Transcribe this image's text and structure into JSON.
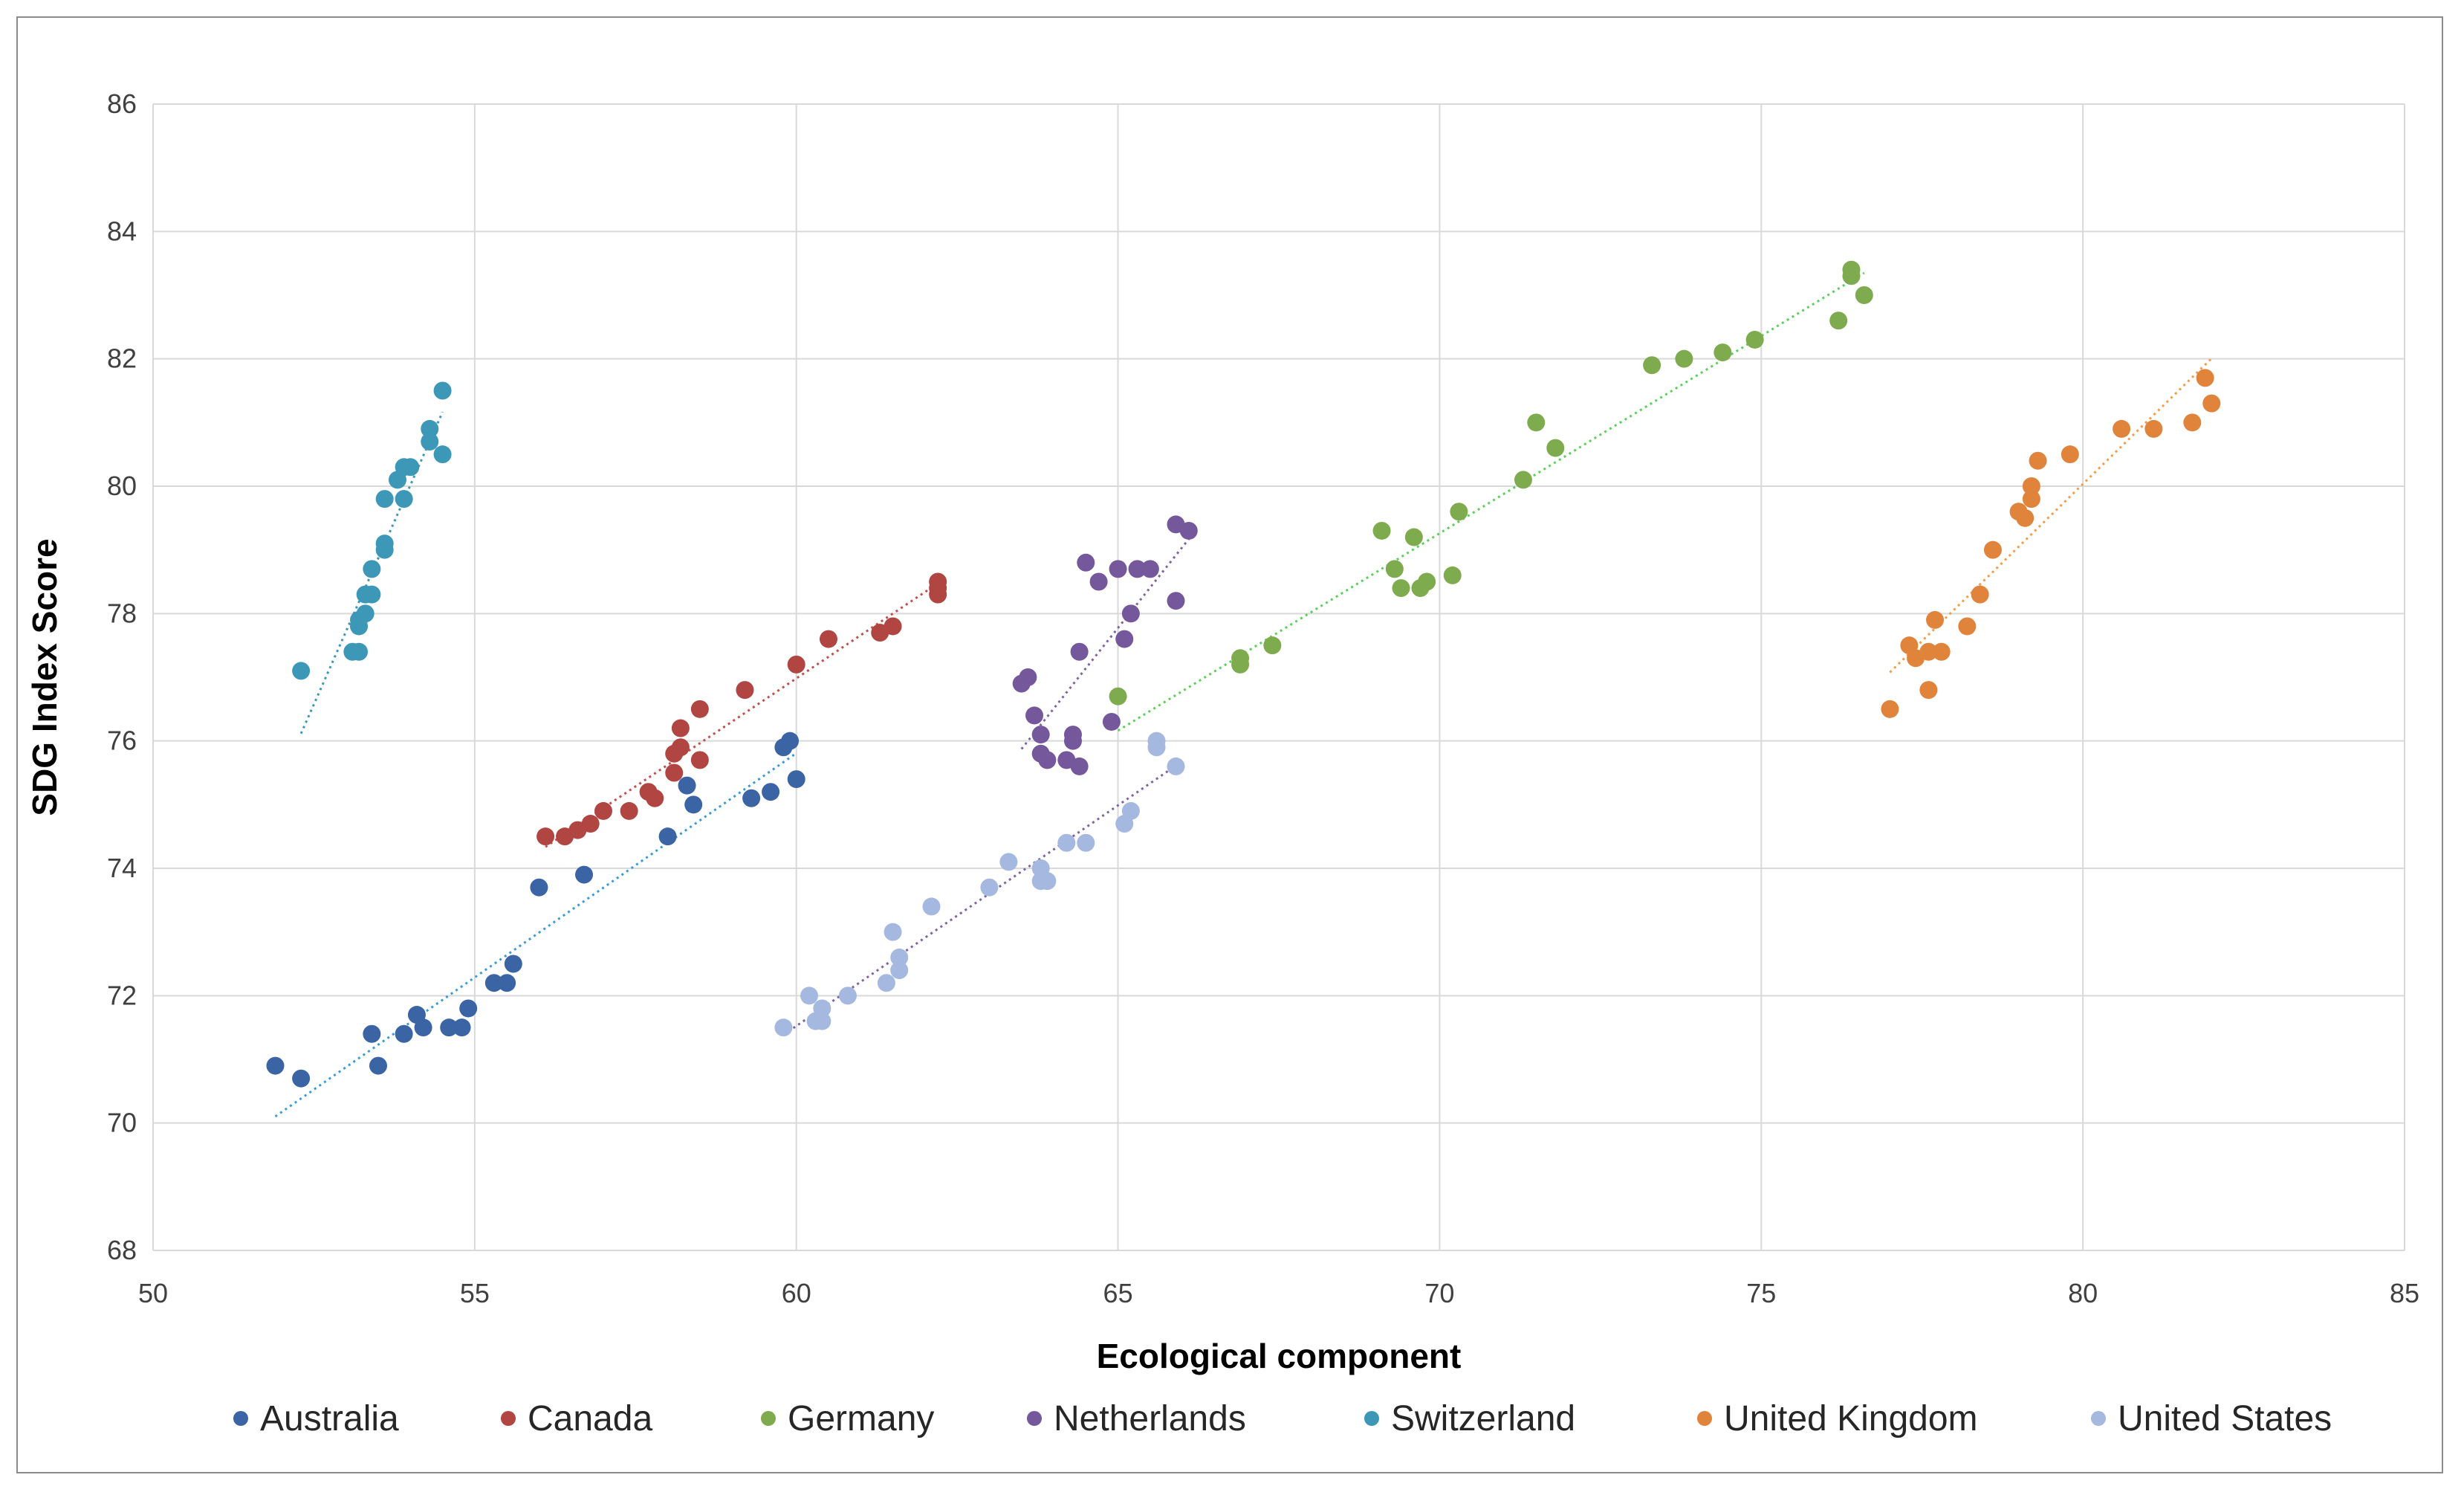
{
  "chart_data": {
    "type": "scatter",
    "title": "",
    "xlabel": "Ecological component",
    "ylabel": "SDG Index Score",
    "xlim": [
      50,
      85
    ],
    "ylim": [
      68,
      86
    ],
    "xticks": [
      50,
      55,
      60,
      65,
      70,
      75,
      80,
      85
    ],
    "yticks": [
      68,
      70,
      72,
      74,
      76,
      78,
      80,
      82,
      84,
      86
    ],
    "grid": true,
    "legend_position": "bottom",
    "trendlines": true,
    "series": [
      {
        "name": "Australia",
        "color": "#3B64A5",
        "trend_color": "#3C9BD6",
        "points": [
          [
            51.9,
            70.9
          ],
          [
            52.3,
            70.7
          ],
          [
            53.4,
            71.4
          ],
          [
            53.5,
            70.9
          ],
          [
            53.9,
            71.4
          ],
          [
            54.1,
            71.7
          ],
          [
            54.2,
            71.5
          ],
          [
            54.6,
            71.5
          ],
          [
            54.8,
            71.5
          ],
          [
            54.9,
            71.8
          ],
          [
            55.3,
            72.2
          ],
          [
            55.5,
            72.2
          ],
          [
            55.6,
            72.5
          ],
          [
            56.0,
            73.7
          ],
          [
            56.7,
            73.9
          ],
          [
            58.0,
            74.5
          ],
          [
            58.3,
            75.3
          ],
          [
            58.4,
            75.0
          ],
          [
            59.3,
            75.1
          ],
          [
            59.6,
            75.2
          ],
          [
            59.8,
            75.9
          ],
          [
            59.9,
            76.0
          ],
          [
            60.0,
            75.4
          ]
        ]
      },
      {
        "name": "Canada",
        "color": "#B04542",
        "trend_color": "#C0504D",
        "points": [
          [
            56.1,
            74.5
          ],
          [
            56.4,
            74.5
          ],
          [
            56.6,
            74.6
          ],
          [
            56.8,
            74.7
          ],
          [
            57.0,
            74.9
          ],
          [
            57.4,
            74.9
          ],
          [
            57.7,
            75.2
          ],
          [
            57.8,
            75.1
          ],
          [
            58.1,
            75.5
          ],
          [
            58.1,
            75.8
          ],
          [
            58.2,
            75.9
          ],
          [
            58.2,
            76.2
          ],
          [
            58.5,
            75.7
          ],
          [
            58.5,
            76.5
          ],
          [
            59.2,
            76.8
          ],
          [
            60.0,
            77.2
          ],
          [
            60.5,
            77.6
          ],
          [
            61.3,
            77.7
          ],
          [
            61.5,
            77.8
          ],
          [
            62.2,
            78.5
          ],
          [
            62.2,
            78.3
          ],
          [
            62.2,
            78.4
          ]
        ]
      },
      {
        "name": "Germany",
        "color": "#7FAB4F",
        "trend_color": "#5CCF5C",
        "points": [
          [
            65.0,
            76.7
          ],
          [
            66.9,
            77.2
          ],
          [
            66.9,
            77.3
          ],
          [
            67.4,
            77.5
          ],
          [
            69.1,
            79.3
          ],
          [
            69.3,
            78.7
          ],
          [
            69.4,
            78.4
          ],
          [
            69.6,
            79.2
          ],
          [
            69.7,
            78.4
          ],
          [
            69.8,
            78.5
          ],
          [
            70.2,
            78.6
          ],
          [
            70.3,
            79.6
          ],
          [
            71.3,
            80.1
          ],
          [
            71.5,
            81.0
          ],
          [
            71.8,
            80.6
          ],
          [
            73.3,
            81.9
          ],
          [
            73.8,
            82.0
          ],
          [
            74.4,
            82.1
          ],
          [
            74.9,
            82.3
          ],
          [
            76.2,
            82.6
          ],
          [
            76.4,
            83.4
          ],
          [
            76.4,
            83.3
          ],
          [
            76.6,
            83.0
          ]
        ]
      },
      {
        "name": "Netherlands",
        "color": "#75579B",
        "trend_color": "#8064A2",
        "points": [
          [
            63.5,
            76.9
          ],
          [
            63.6,
            77.0
          ],
          [
            63.7,
            76.4
          ],
          [
            63.8,
            76.1
          ],
          [
            63.8,
            75.8
          ],
          [
            63.9,
            75.7
          ],
          [
            64.2,
            75.7
          ],
          [
            64.3,
            76.0
          ],
          [
            64.3,
            76.1
          ],
          [
            64.4,
            75.6
          ],
          [
            64.4,
            77.4
          ],
          [
            64.5,
            78.8
          ],
          [
            64.7,
            78.5
          ],
          [
            64.9,
            76.3
          ],
          [
            65.0,
            78.7
          ],
          [
            65.1,
            77.6
          ],
          [
            65.2,
            78.0
          ],
          [
            65.3,
            78.7
          ],
          [
            65.5,
            78.7
          ],
          [
            65.9,
            79.4
          ],
          [
            65.9,
            78.2
          ],
          [
            66.1,
            79.3
          ]
        ]
      },
      {
        "name": "Switzerland",
        "color": "#3C98B6",
        "trend_color": "#3C98B6",
        "points": [
          [
            52.3,
            77.1
          ],
          [
            53.1,
            77.4
          ],
          [
            53.2,
            77.8
          ],
          [
            53.2,
            77.9
          ],
          [
            53.2,
            77.4
          ],
          [
            53.3,
            78.3
          ],
          [
            53.3,
            78.0
          ],
          [
            53.4,
            78.7
          ],
          [
            53.4,
            78.3
          ],
          [
            53.6,
            79.8
          ],
          [
            53.6,
            79.1
          ],
          [
            53.6,
            79.0
          ],
          [
            53.8,
            80.1
          ],
          [
            53.9,
            80.3
          ],
          [
            53.9,
            79.8
          ],
          [
            54.0,
            80.3
          ],
          [
            54.3,
            80.7
          ],
          [
            54.3,
            80.9
          ],
          [
            54.5,
            80.5
          ],
          [
            54.5,
            81.5
          ]
        ]
      },
      {
        "name": "United Kingdom",
        "color": "#E1843B",
        "trend_color": "#F39C4B",
        "points": [
          [
            77.0,
            76.5
          ],
          [
            77.3,
            77.5
          ],
          [
            77.4,
            77.3
          ],
          [
            77.6,
            76.8
          ],
          [
            77.6,
            77.4
          ],
          [
            77.7,
            77.9
          ],
          [
            77.8,
            77.4
          ],
          [
            78.2,
            77.8
          ],
          [
            78.4,
            78.3
          ],
          [
            78.6,
            79.0
          ],
          [
            79.0,
            79.6
          ],
          [
            79.1,
            79.5
          ],
          [
            79.2,
            79.8
          ],
          [
            79.2,
            80.0
          ],
          [
            79.3,
            80.4
          ],
          [
            79.8,
            80.5
          ],
          [
            80.6,
            80.9
          ],
          [
            81.1,
            80.9
          ],
          [
            81.7,
            81.0
          ],
          [
            81.9,
            81.7
          ],
          [
            82.0,
            81.3
          ]
        ]
      },
      {
        "name": "United States",
        "color": "#A4B8E0",
        "trend_color": "#7E64A2",
        "points": [
          [
            59.8,
            71.5
          ],
          [
            60.2,
            72.0
          ],
          [
            60.3,
            71.6
          ],
          [
            60.4,
            71.6
          ],
          [
            60.4,
            71.8
          ],
          [
            60.8,
            72.0
          ],
          [
            61.4,
            72.2
          ],
          [
            61.5,
            73.0
          ],
          [
            61.6,
            72.6
          ],
          [
            61.6,
            72.4
          ],
          [
            62.1,
            73.4
          ],
          [
            63.0,
            73.7
          ],
          [
            63.3,
            74.1
          ],
          [
            63.8,
            74.0
          ],
          [
            63.8,
            73.8
          ],
          [
            63.9,
            73.8
          ],
          [
            64.2,
            74.4
          ],
          [
            64.5,
            74.4
          ],
          [
            65.1,
            74.7
          ],
          [
            65.2,
            74.9
          ],
          [
            65.6,
            75.9
          ],
          [
            65.6,
            76.0
          ],
          [
            65.9,
            75.6
          ]
        ]
      }
    ]
  }
}
